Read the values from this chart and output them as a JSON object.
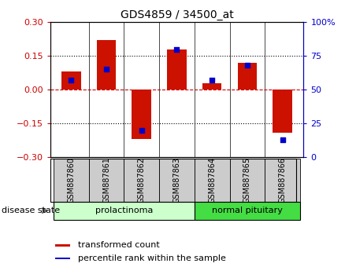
{
  "title": "GDS4859 / 34500_at",
  "samples": [
    "GSM887860",
    "GSM887861",
    "GSM887862",
    "GSM887863",
    "GSM887864",
    "GSM887865",
    "GSM887866"
  ],
  "transformed_count": [
    0.08,
    0.22,
    -0.22,
    0.18,
    0.03,
    0.12,
    -0.19
  ],
  "percentile_rank": [
    57,
    65,
    20,
    80,
    57,
    68,
    13
  ],
  "ylim_left": [
    -0.3,
    0.3
  ],
  "ylim_right": [
    0,
    100
  ],
  "yticks_left": [
    -0.3,
    -0.15,
    0,
    0.15,
    0.3
  ],
  "yticks_right": [
    0,
    25,
    50,
    75,
    100
  ],
  "group_labels": [
    "prolactinoma",
    "normal pituitary"
  ],
  "group_ranges": [
    [
      0,
      3
    ],
    [
      4,
      6
    ]
  ],
  "group_light_color": "#ccffcc",
  "group_dark_color": "#44dd44",
  "bar_color": "#cc1100",
  "dot_color": "#0000cc",
  "bg_color": "#ffffff",
  "plot_bg": "#ffffff",
  "zero_line_color": "#cc0000",
  "disease_state_label": "disease state",
  "legend_items": [
    "transformed count",
    "percentile rank within the sample"
  ],
  "bar_width": 0.55,
  "left_label_color": "#cc0000",
  "right_label_color": "#0000cc",
  "sample_box_color": "#cccccc",
  "title_fontsize": 10
}
